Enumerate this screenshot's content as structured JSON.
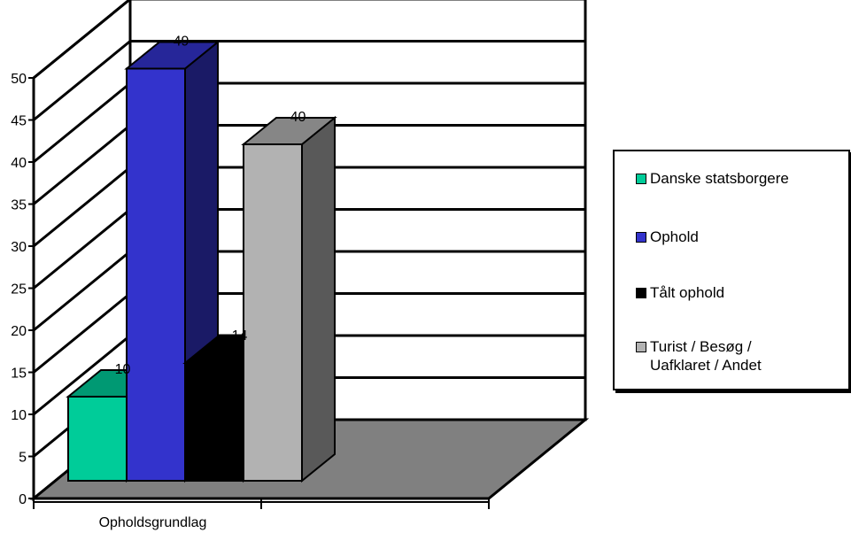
{
  "chart_data": {
    "type": "bar",
    "style": "3d-clustered",
    "categories": [
      "Opholdsgrundlag"
    ],
    "series": [
      {
        "name": "Danske statsborgere",
        "values": [
          10
        ],
        "color": "#00cc99"
      },
      {
        "name": "Ophold",
        "values": [
          49
        ],
        "color": "#3333cc"
      },
      {
        "name": "Tålt ophold",
        "values": [
          14
        ],
        "color": "#000000"
      },
      {
        "name": "Turist / Besøg / Uafklaret / Andet",
        "values": [
          40
        ],
        "color": "#b2b2b2"
      }
    ],
    "ylim": [
      0,
      50
    ],
    "yticks": [
      0,
      5,
      10,
      15,
      20,
      25,
      30,
      35,
      40,
      45,
      50
    ],
    "grid": true,
    "legend_position": "right",
    "wall_color": "#ffffff",
    "floor_color": "#808080"
  },
  "legend": {
    "items": [
      {
        "label": "Danske statsborgere",
        "color": "#00cc99"
      },
      {
        "label": "Ophold",
        "color": "#3333cc"
      },
      {
        "label": "Tålt ophold",
        "color": "#000000"
      },
      {
        "label": "Turist / Besøg /\nUafklaret / Andet",
        "color": "#b2b2b2"
      }
    ]
  }
}
